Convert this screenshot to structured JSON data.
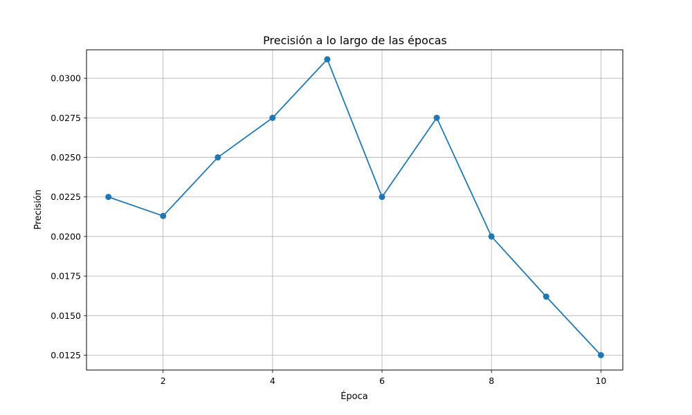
{
  "chart_data": {
    "type": "line",
    "title": "Precisión a lo largo de las épocas",
    "xlabel": "Época",
    "ylabel": "Precisión",
    "grid": true,
    "legend": "none",
    "xlim": [
      0.6,
      10.4
    ],
    "ylim": [
      0.01156,
      0.0318
    ],
    "xticks": [
      2,
      4,
      6,
      8,
      10
    ],
    "yticks": [
      0.0125,
      0.015,
      0.0175,
      0.02,
      0.0225,
      0.025,
      0.0275,
      0.03
    ],
    "ytick_labels": [
      "0.0125",
      "0.0150",
      "0.0175",
      "0.0200",
      "0.0225",
      "0.0250",
      "0.0275",
      "0.0300"
    ],
    "series": [
      {
        "color": "#1f77b4",
        "marker": "circle",
        "x": [
          1,
          2,
          3,
          4,
          5,
          6,
          7,
          8,
          9,
          10
        ],
        "y": [
          0.0225,
          0.0213,
          0.025,
          0.0275,
          0.0312,
          0.0225,
          0.0275,
          0.02,
          0.0162,
          0.0125
        ]
      }
    ]
  }
}
